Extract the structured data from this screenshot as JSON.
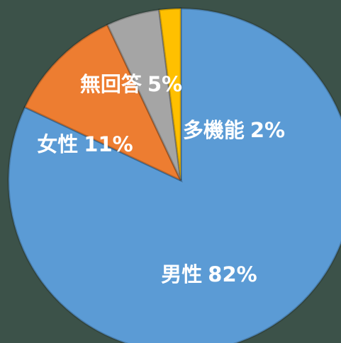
{
  "chart_data": {
    "type": "pie",
    "categories": [
      "男性",
      "女性",
      "無回答",
      "多機能"
    ],
    "values": [
      82,
      11,
      5,
      2
    ],
    "value_labels": [
      "82%",
      "11%",
      "5%",
      "2%"
    ],
    "colors": [
      "#5b9bd5",
      "#ed7d31",
      "#a5a5a5",
      "#ffc000"
    ],
    "start_angle": 0,
    "direction": "clockwise"
  }
}
